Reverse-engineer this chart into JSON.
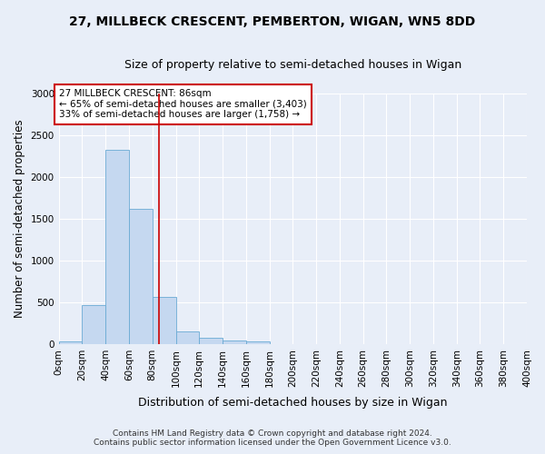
{
  "title": "27, MILLBECK CRESCENT, PEMBERTON, WIGAN, WN5 8DD",
  "subtitle": "Size of property relative to semi-detached houses in Wigan",
  "xlabel": "Distribution of semi-detached houses by size in Wigan",
  "ylabel": "Number of semi-detached properties",
  "footnote1": "Contains HM Land Registry data © Crown copyright and database right 2024.",
  "footnote2": "Contains public sector information licensed under the Open Government Licence v3.0.",
  "property_size": 86,
  "annotation_title": "27 MILLBECK CRESCENT: 86sqm",
  "annotation_line1": "← 65% of semi-detached houses are smaller (3,403)",
  "annotation_line2": "33% of semi-detached houses are larger (1,758) →",
  "bin_edges": [
    0,
    20,
    40,
    60,
    80,
    100,
    120,
    140,
    160,
    180,
    200,
    220,
    240,
    260,
    280,
    300,
    320,
    340,
    360,
    380,
    400
  ],
  "bin_counts": [
    30,
    470,
    2320,
    1620,
    560,
    150,
    80,
    40,
    30,
    0,
    0,
    0,
    0,
    0,
    0,
    0,
    0,
    0,
    0,
    0
  ],
  "bar_color": "#c5d8f0",
  "bar_edge_color": "#6aaad4",
  "red_line_color": "#cc0000",
  "background_color": "#e8eef8",
  "annotation_box_color": "white",
  "annotation_box_edge": "#cc0000",
  "ylim": [
    0,
    3000
  ],
  "xlim": [
    0,
    400
  ],
  "grid_color": "white",
  "title_fontsize": 10,
  "subtitle_fontsize": 9,
  "tick_fontsize": 7.5,
  "annotation_fontsize": 7.5,
  "ylabel_fontsize": 8.5,
  "xlabel_fontsize": 9
}
